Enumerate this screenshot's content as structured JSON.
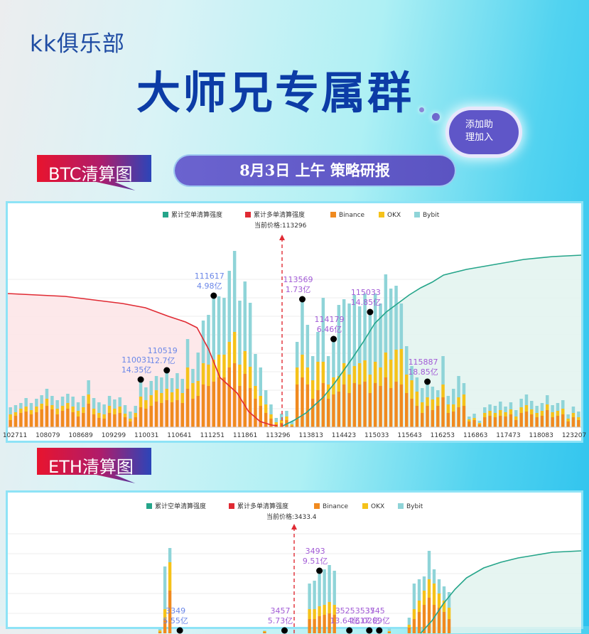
{
  "header": {
    "brand": "kk俱乐部",
    "headline": "大师兄专属群",
    "cloud_label": "添加助\n理加入",
    "strategy_label": "8月3日 上午 策略研报"
  },
  "colors": {
    "short_line": "#25a58a",
    "long_line": "#e02a33",
    "binance": "#f08a1f",
    "okx": "#f5c21a",
    "bybit": "#8fd4d8",
    "marker_label": "#a25bd6",
    "price_line": "#e02a33"
  },
  "chart_data": [
    {
      "type": "bar",
      "tag_label": "BTC清算图",
      "legend": [
        "累计空单清算强度",
        "累计多单清算强度",
        "Binance",
        "OKX",
        "Bybit"
      ],
      "current_price_label": "当前价格:113296",
      "current_price": 113296,
      "x_tick_labels": [
        "102711",
        "108079",
        "108689",
        "109299",
        "110031",
        "110641",
        "111251",
        "111861",
        "113296",
        "113813",
        "114423",
        "115033",
        "115643",
        "116253",
        "116863",
        "117473",
        "118083",
        "123207"
      ],
      "bars": [
        [
          10,
          8,
          10
        ],
        [
          16,
          5,
          10
        ],
        [
          20,
          6,
          8
        ],
        [
          22,
          7,
          12
        ],
        [
          18,
          6,
          10
        ],
        [
          21,
          8,
          11
        ],
        [
          25,
          8,
          12
        ],
        [
          30,
          10,
          14
        ],
        [
          25,
          6,
          13
        ],
        [
          18,
          8,
          12
        ],
        [
          23,
          7,
          13
        ],
        [
          26,
          8,
          13
        ],
        [
          21,
          8,
          14
        ],
        [
          15,
          8,
          12
        ],
        [
          20,
          8,
          16
        ],
        [
          33,
          13,
          20
        ],
        [
          18,
          8,
          15
        ],
        [
          13,
          7,
          15
        ],
        [
          12,
          6,
          14
        ],
        [
          20,
          10,
          14
        ],
        [
          18,
          8,
          13
        ],
        [
          20,
          9,
          13
        ],
        [
          14,
          5,
          12
        ],
        [
          8,
          4,
          10
        ],
        [
          14,
          6,
          10
        ],
        [
          28,
          15,
          20
        ],
        [
          26,
          12,
          18
        ],
        [
          30,
          15,
          20
        ],
        [
          36,
          16,
          20
        ],
        [
          34,
          14,
          22
        ],
        [
          38,
          16,
          22
        ],
        [
          35,
          14,
          20
        ],
        [
          38,
          16,
          22
        ],
        [
          34,
          14,
          20
        ],
        [
          54,
          30,
          40
        ],
        [
          40,
          22,
          20
        ],
        [
          44,
          21,
          40
        ],
        [
          60,
          30,
          60
        ],
        [
          58,
          30,
          70
        ],
        [
          64,
          31,
          86
        ],
        [
          70,
          32,
          82
        ],
        [
          70,
          32,
          80
        ],
        [
          84,
          36,
          100
        ],
        [
          90,
          44,
          114
        ],
        [
          58,
          30,
          90
        ],
        [
          75,
          32,
          98
        ],
        [
          55,
          30,
          90
        ],
        [
          40,
          18,
          45
        ],
        [
          30,
          14,
          40
        ],
        [
          20,
          12,
          20
        ],
        [
          12,
          6,
          14
        ],
        [
          4,
          3,
          6
        ],
        [
          6,
          4,
          9
        ],
        [
          10,
          5,
          8
        ],
        [
          2,
          2,
          4
        ],
        [
          60,
          24,
          36
        ],
        [
          70,
          32,
          74
        ],
        [
          60,
          24,
          60
        ],
        [
          40,
          26,
          34
        ],
        [
          52,
          40,
          42
        ],
        [
          62,
          30,
          90
        ],
        [
          40,
          20,
          40
        ],
        [
          46,
          24,
          50
        ],
        [
          50,
          22,
          100
        ],
        [
          60,
          30,
          90
        ],
        [
          48,
          26,
          100
        ],
        [
          62,
          24,
          100
        ],
        [
          60,
          30,
          80
        ],
        [
          64,
          30,
          94
        ],
        [
          48,
          26,
          84
        ],
        [
          62,
          30,
          96
        ],
        [
          58,
          26,
          90
        ],
        [
          70,
          35,
          110
        ],
        [
          55,
          40,
          100
        ],
        [
          64,
          45,
          90
        ],
        [
          60,
          50,
          64
        ],
        [
          48,
          26,
          40
        ],
        [
          40,
          26,
          20
        ],
        [
          30,
          20,
          20
        ],
        [
          20,
          15,
          20
        ],
        [
          30,
          12,
          18
        ],
        [
          24,
          15,
          18
        ],
        [
          30,
          12,
          10
        ],
        [
          42,
          18,
          40
        ],
        [
          20,
          12,
          12
        ],
        [
          22,
          10,
          22
        ],
        [
          28,
          14,
          30
        ],
        [
          30,
          16,
          16
        ],
        [
          8,
          3,
          4
        ],
        [
          10,
          3,
          6
        ],
        [
          4,
          2,
          3
        ],
        [
          14,
          6,
          8
        ],
        [
          16,
          7,
          9
        ],
        [
          14,
          6,
          10
        ],
        [
          16,
          8,
          12
        ],
        [
          15,
          6,
          8
        ],
        [
          18,
          7,
          10
        ],
        [
          10,
          5,
          9
        ],
        [
          20,
          8,
          12
        ],
        [
          22,
          9,
          15
        ],
        [
          18,
          7,
          12
        ],
        [
          14,
          6,
          10
        ],
        [
          16,
          7,
          11
        ],
        [
          24,
          8,
          13
        ],
        [
          14,
          7,
          10
        ],
        [
          16,
          7,
          11
        ],
        [
          18,
          8,
          12
        ],
        [
          8,
          4,
          6
        ],
        [
          14,
          6,
          9
        ],
        [
          10,
          4,
          8
        ]
      ],
      "long_curve": [
        [
          0,
          188
        ],
        [
          0.05,
          186
        ],
        [
          0.1,
          184
        ],
        [
          0.15,
          179
        ],
        [
          0.2,
          174
        ],
        [
          0.24,
          168
        ],
        [
          0.28,
          156
        ],
        [
          0.31,
          148
        ],
        [
          0.33,
          140
        ],
        [
          0.35,
          110
        ],
        [
          0.37,
          70
        ],
        [
          0.4,
          48
        ],
        [
          0.42,
          22
        ],
        [
          0.44,
          8
        ],
        [
          0.46,
          3
        ],
        [
          0.47,
          2
        ]
      ],
      "short_curve": [
        [
          0.48,
          2
        ],
        [
          0.5,
          10
        ],
        [
          0.52,
          20
        ],
        [
          0.55,
          42
        ],
        [
          0.57,
          62
        ],
        [
          0.6,
          96
        ],
        [
          0.62,
          120
        ],
        [
          0.64,
          146
        ],
        [
          0.66,
          162
        ],
        [
          0.68,
          174
        ],
        [
          0.7,
          186
        ],
        [
          0.72,
          196
        ],
        [
          0.74,
          204
        ],
        [
          0.76,
          214
        ],
        [
          0.8,
          222
        ],
        [
          0.85,
          229
        ],
        [
          0.9,
          236
        ],
        [
          0.95,
          240
        ],
        [
          1.0,
          242
        ]
      ],
      "annotations": [
        {
          "price": "110031",
          "amount": "14.35亿",
          "bar": 25
        },
        {
          "price": "110519",
          "amount": "12.7亿",
          "bar": 30
        },
        {
          "price": "111617",
          "amount": "4.98亿",
          "bar": 39
        },
        {
          "price": "113569",
          "amount": "1.73亿",
          "bar": 56
        },
        {
          "price": "114179",
          "amount": "6.46亿",
          "bar": 62
        },
        {
          "price": "115033",
          "amount": "14.85亿",
          "bar": 69
        },
        {
          "price": "115887",
          "amount": "18.85亿",
          "bar": 80
        }
      ]
    },
    {
      "type": "bar",
      "tag_label": "ETH清算图",
      "legend": [
        "累计空单清算强度",
        "累计多单清算强度",
        "Binance",
        "OKX",
        "Bybit"
      ],
      "current_price_label": "当前价格:3433.4",
      "current_price": 3433.4,
      "bars": [
        [
          0,
          0,
          0
        ],
        [
          0,
          0,
          0
        ],
        [
          0,
          0,
          0
        ],
        [
          0,
          0,
          0
        ],
        [
          0,
          0,
          0
        ],
        [
          0,
          0,
          0
        ],
        [
          0,
          0,
          0
        ],
        [
          0,
          0,
          0
        ],
        [
          0,
          0,
          0
        ],
        [
          0,
          0,
          0
        ],
        [
          0,
          0,
          0
        ],
        [
          0,
          0,
          0
        ],
        [
          0,
          0,
          0
        ],
        [
          0,
          0,
          0
        ],
        [
          0,
          0,
          0
        ],
        [
          0,
          0,
          0
        ],
        [
          0,
          0,
          0
        ],
        [
          0,
          0,
          0
        ],
        [
          0,
          0,
          0
        ],
        [
          0,
          0,
          0
        ],
        [
          0,
          0,
          0
        ],
        [
          0,
          0,
          0
        ],
        [
          0,
          0,
          0
        ],
        [
          0,
          0,
          0
        ],
        [
          0,
          0,
          0
        ],
        [
          0,
          0,
          0
        ],
        [
          0,
          0,
          0
        ],
        [
          0,
          0,
          0
        ],
        [
          0,
          0,
          0
        ],
        [
          0,
          0,
          0
        ],
        [
          2,
          2,
          2
        ],
        [
          20,
          14,
          60
        ],
        [
          60,
          40,
          20
        ],
        [
          0,
          0,
          0
        ],
        [
          0,
          0,
          0
        ],
        [
          0,
          0,
          0
        ],
        [
          0,
          0,
          0
        ],
        [
          0,
          0,
          0
        ],
        [
          0,
          0,
          0
        ],
        [
          0,
          0,
          0
        ],
        [
          0,
          0,
          0
        ],
        [
          0,
          0,
          0
        ],
        [
          0,
          0,
          0
        ],
        [
          0,
          0,
          0
        ],
        [
          0,
          0,
          0
        ],
        [
          0,
          0,
          0
        ],
        [
          0,
          0,
          0
        ],
        [
          0,
          0,
          0
        ],
        [
          0,
          0,
          0
        ],
        [
          0,
          0,
          0
        ],
        [
          0,
          0,
          0
        ],
        [
          2,
          1,
          1
        ],
        [
          0,
          0,
          0
        ],
        [
          0,
          0,
          0
        ],
        [
          0,
          0,
          0
        ],
        [
          0,
          0,
          0
        ],
        [
          0,
          0,
          0
        ],
        [
          0,
          0,
          0
        ],
        [
          0,
          0,
          0
        ],
        [
          0,
          0,
          0
        ],
        [
          20,
          14,
          36
        ],
        [
          20,
          14,
          40
        ],
        [
          24,
          14,
          46
        ],
        [
          26,
          14,
          50
        ],
        [
          28,
          16,
          52
        ],
        [
          26,
          14,
          48
        ],
        [
          0,
          0,
          0
        ],
        [
          0,
          0,
          0
        ],
        [
          0,
          0,
          0
        ],
        [
          0,
          0,
          0
        ],
        [
          0,
          0,
          0
        ],
        [
          0,
          0,
          0
        ],
        [
          0,
          0,
          0
        ],
        [
          0,
          0,
          0
        ],
        [
          0,
          0,
          0
        ],
        [
          0,
          0,
          0
        ],
        [
          2,
          1,
          4
        ],
        [
          0,
          0,
          0
        ],
        [
          0,
          0,
          0
        ],
        [
          0,
          0,
          0
        ],
        [
          8,
          4,
          10
        ],
        [
          20,
          14,
          36
        ],
        [
          30,
          16,
          30
        ],
        [
          40,
          20,
          20
        ],
        [
          50,
          26,
          40
        ],
        [
          40,
          30,
          20
        ],
        [
          36,
          20,
          20
        ],
        [
          30,
          16,
          20
        ],
        [
          20,
          16,
          22
        ],
        [
          0,
          0,
          0
        ],
        [
          0,
          0,
          0
        ],
        [
          0,
          0,
          0
        ],
        [
          0,
          0,
          0
        ],
        [
          0,
          0,
          0
        ],
        [
          0,
          0,
          0
        ],
        [
          0,
          0,
          0
        ],
        [
          0,
          0,
          0
        ],
        [
          0,
          0,
          0
        ],
        [
          0,
          0,
          0
        ],
        [
          0,
          0,
          0
        ],
        [
          0,
          0,
          0
        ],
        [
          0,
          0,
          0
        ],
        [
          0,
          0,
          0
        ],
        [
          0,
          0,
          0
        ],
        [
          0,
          0,
          0
        ],
        [
          0,
          0,
          0
        ],
        [
          0,
          0,
          0
        ],
        [
          0,
          0,
          0
        ],
        [
          0,
          0,
          0
        ],
        [
          0,
          0,
          0
        ],
        [
          0,
          0,
          0
        ],
        [
          0,
          0,
          0
        ],
        [
          0,
          0,
          0
        ],
        [
          0,
          0,
          0
        ],
        [
          0,
          0,
          0
        ]
      ],
      "short_curve": [
        [
          0.72,
          0
        ],
        [
          0.74,
          18
        ],
        [
          0.76,
          42
        ],
        [
          0.78,
          62
        ],
        [
          0.8,
          78
        ],
        [
          0.83,
          92
        ],
        [
          0.86,
          100
        ],
        [
          0.89,
          106
        ],
        [
          0.92,
          110
        ],
        [
          0.95,
          114
        ],
        [
          1.0,
          116
        ]
      ],
      "annotations": [
        {
          "price": "3349",
          "amount": "5.55亿",
          "bar": 34
        },
        {
          "price": "3457",
          "amount": "5.73亿",
          "bar": 55
        },
        {
          "price": "3493",
          "amount": "9.51亿",
          "bar": 62
        },
        {
          "price": "3525",
          "amount": "13.64亿",
          "bar": 68
        },
        {
          "price": "3537",
          "amount": "16.02亿",
          "bar": 72
        },
        {
          "price": "3545",
          "amount": "17.89亿",
          "bar": 74
        }
      ]
    }
  ]
}
